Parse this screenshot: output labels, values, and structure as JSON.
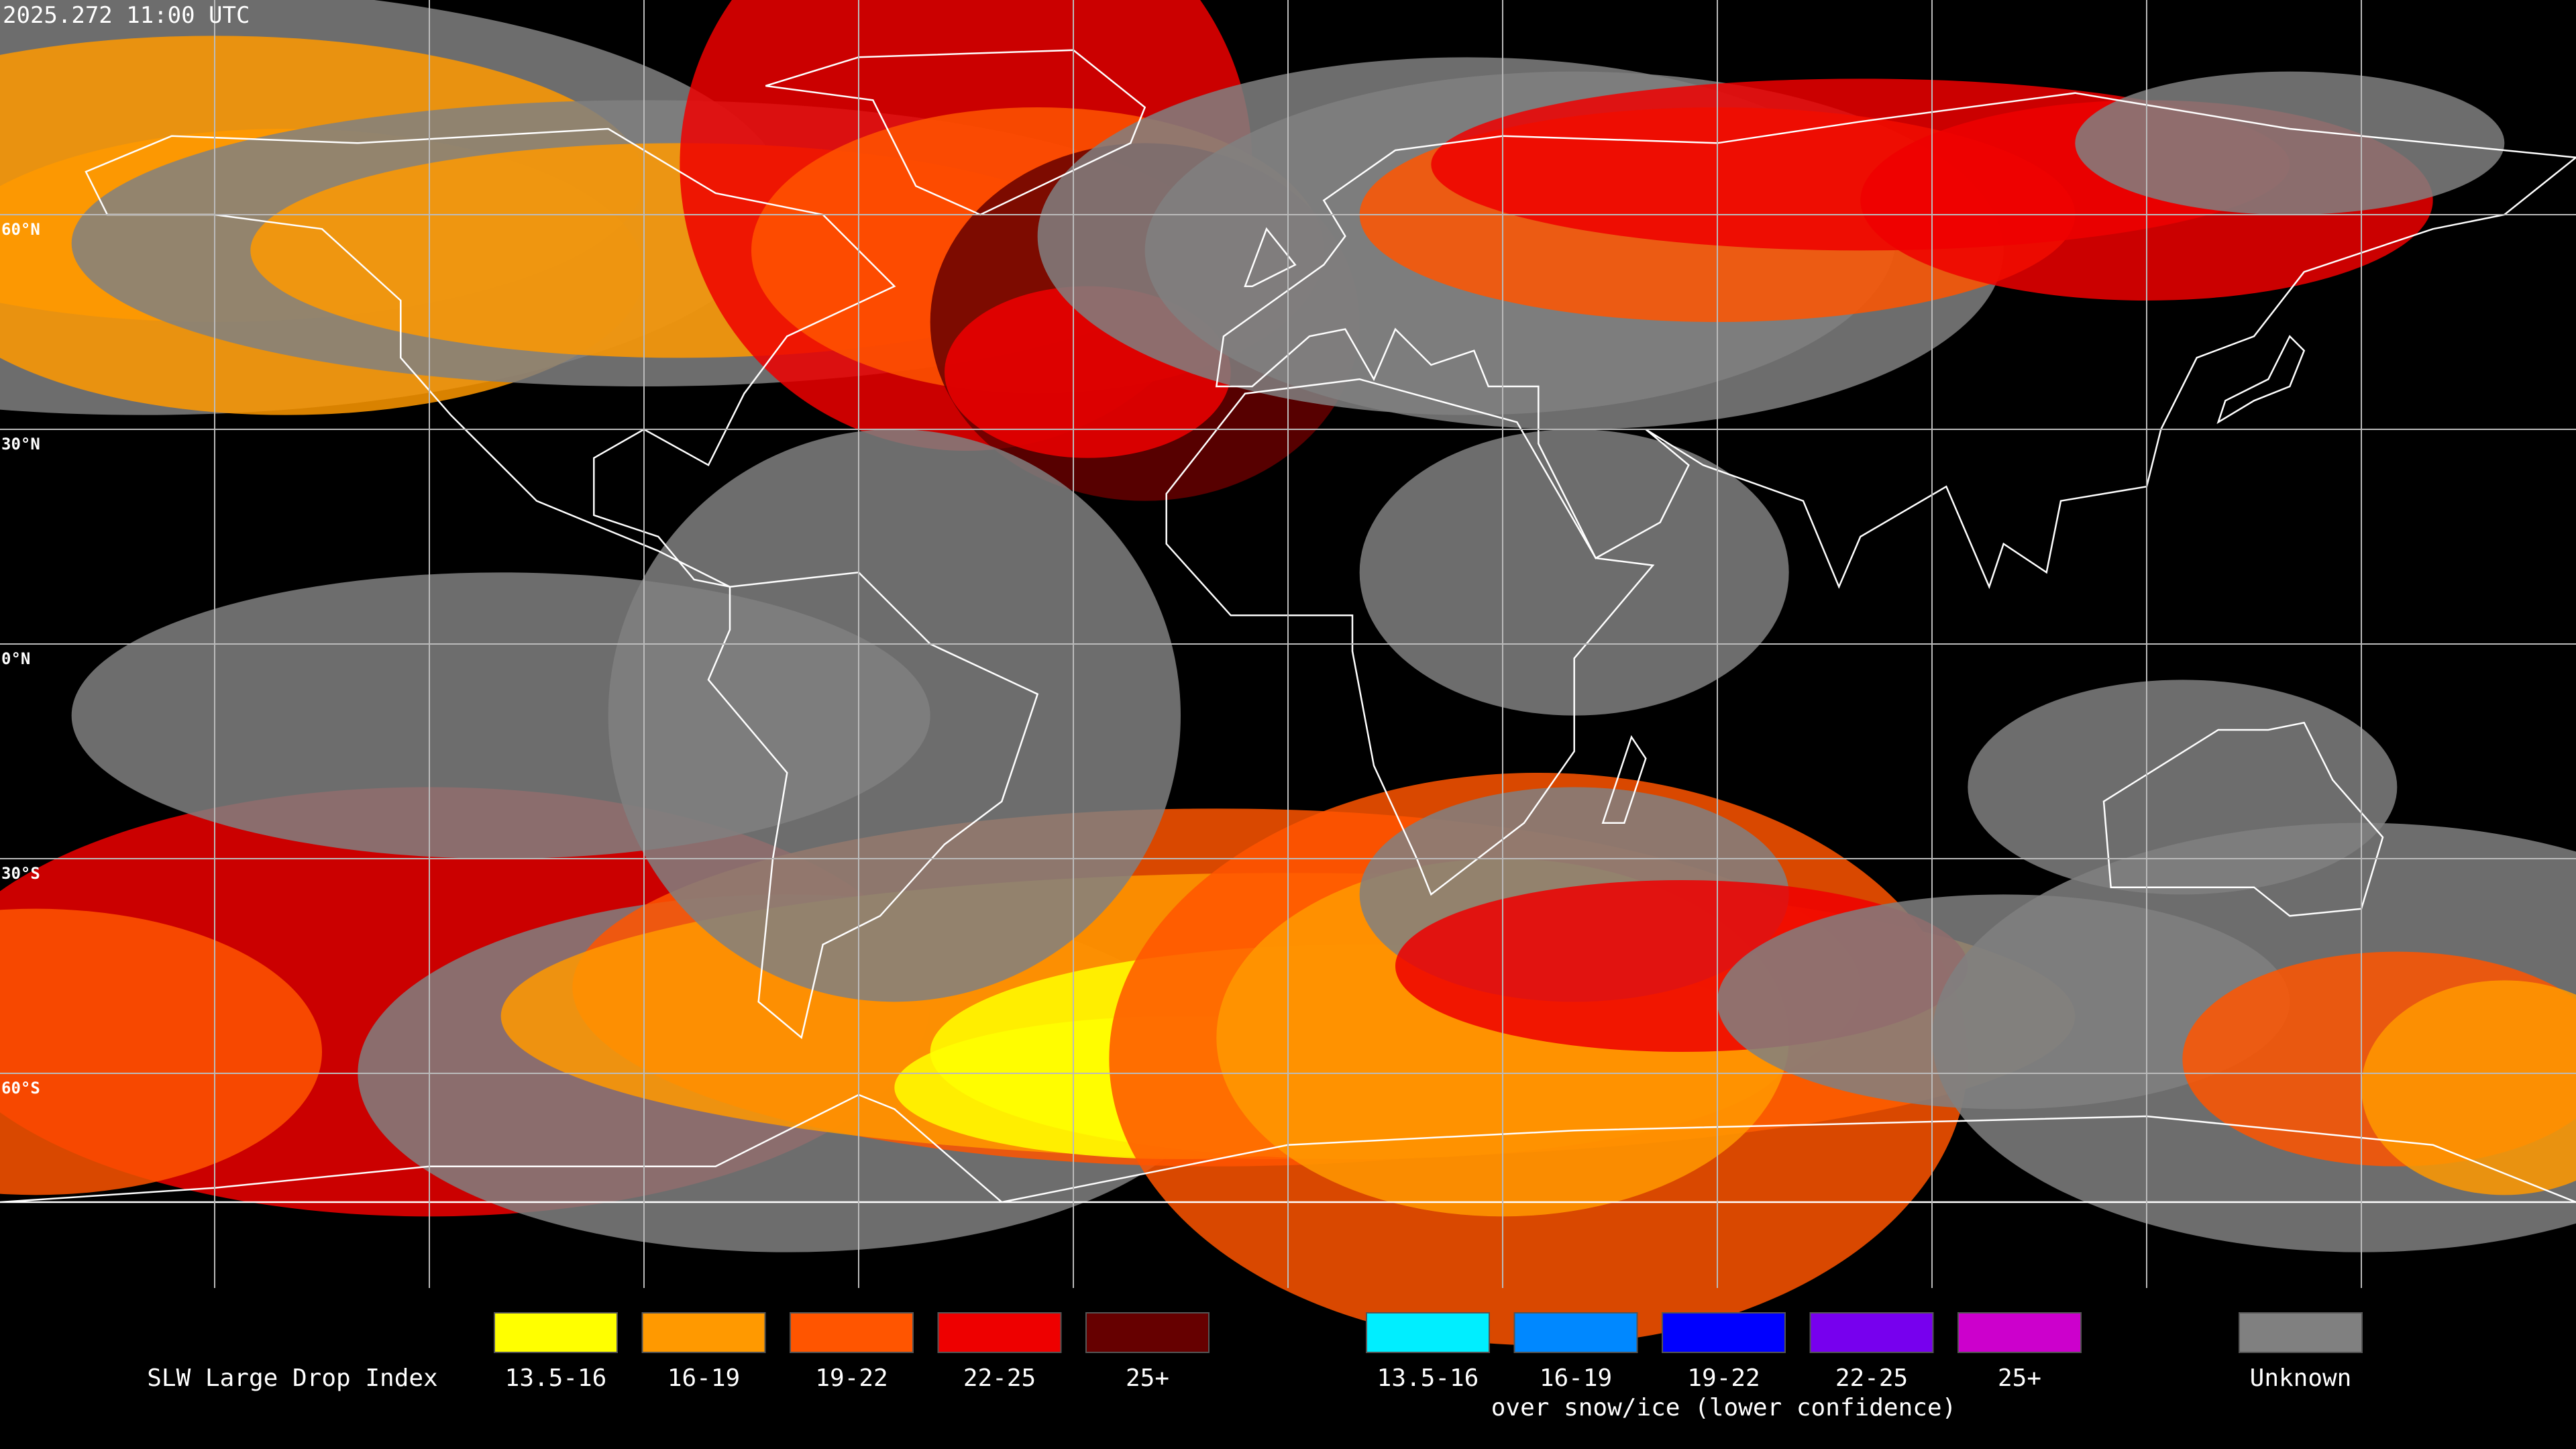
{
  "timestamp": "2025.272 11:00 UTC",
  "latitude_labels": [
    "60°N",
    "30°N",
    "0°N",
    "30°S",
    "60°S"
  ],
  "legend": {
    "title": "SLW Large Drop Index",
    "groups": [
      {
        "items": [
          {
            "label": "13.5-16",
            "color": "#ffff00"
          },
          {
            "label": "16-19",
            "color": "#ff9900"
          },
          {
            "label": "19-22",
            "color": "#ff5500"
          },
          {
            "label": "22-25",
            "color": "#ee0000"
          },
          {
            "label": "25+",
            "color": "#660000"
          }
        ]
      },
      {
        "caption": "over snow/ice (lower confidence)",
        "items": [
          {
            "label": "13.5-16",
            "color": "#00eeff"
          },
          {
            "label": "16-19",
            "color": "#0088ff"
          },
          {
            "label": "19-22",
            "color": "#0000ff"
          },
          {
            "label": "22-25",
            "color": "#7700ee"
          },
          {
            "label": "25+",
            "color": "#cc00cc"
          }
        ]
      },
      {
        "items": [
          {
            "label": "Unknown",
            "color": "#808080"
          }
        ]
      }
    ]
  }
}
